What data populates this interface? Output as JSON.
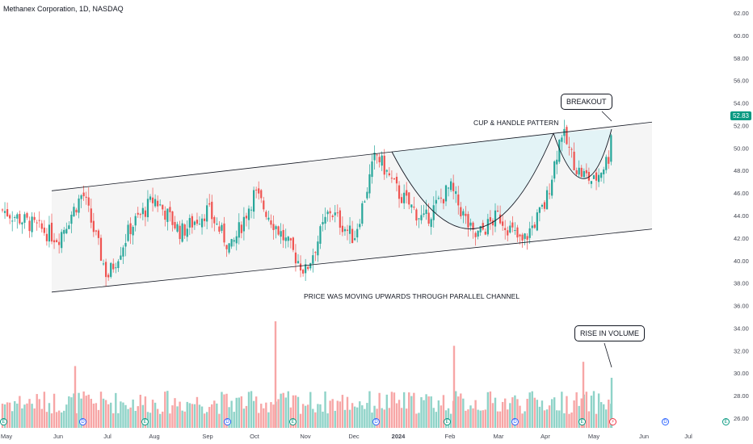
{
  "header": {
    "title": "Methanex Corporation, 1D, NASDAQ"
  },
  "price_tag": "52.83",
  "annotations": {
    "breakout": "BREAKOUT",
    "cup_handle": "CUP & HANDLE PATTERN",
    "channel": "PRICE WAS MOVING UPWARDS THROUGH PARALLEL CHANNEL",
    "volume": "RISE IN VOLUME"
  },
  "events": {
    "earnings_symbol": "E",
    "dividend_symbol": "D",
    "split_symbol": "⚡",
    "earnings_count": 6,
    "dividend_count": 5
  },
  "colors": {
    "up": "#26a69a",
    "down": "#ef5350",
    "vol_up": "#8fd3c8",
    "vol_down": "#f7a6a6",
    "channel_fill": "#f5f5f5",
    "cup_fill": "#e3f3f6",
    "line": "#131722"
  },
  "chart_data": {
    "type": "candlestick",
    "title": "Methanex Corporation, 1D, NASDAQ",
    "last_price": 52.83,
    "y_axis": {
      "ticks": [
        "62.00",
        "60.00",
        "58.00",
        "56.00",
        "54.00",
        "52.00",
        "50.00",
        "48.00",
        "46.00",
        "44.00",
        "42.00",
        "40.00",
        "38.00",
        "36.00",
        "34.00",
        "32.00",
        "30.00",
        "28.00",
        "26.00"
      ],
      "range": [
        26,
        62
      ]
    },
    "x_axis": {
      "ticks": [
        "May",
        "Jun",
        "Jul",
        "Aug",
        "Sep",
        "Oct",
        "Nov",
        "Dec",
        "2024",
        "Feb",
        "Mar",
        "Apr",
        "May",
        "Jun",
        "Jul"
      ]
    },
    "price_path": [
      {
        "date": "May",
        "price": 44.5
      },
      {
        "date": "Jun",
        "price": 42.0
      },
      {
        "date": "Jun",
        "price": 46.0
      },
      {
        "date": "Jul",
        "price": 38.5
      },
      {
        "date": "Jul",
        "price": 43.0
      },
      {
        "date": "Aug",
        "price": 45.5
      },
      {
        "date": "Aug",
        "price": 42.5
      },
      {
        "date": "Sep",
        "price": 44.5
      },
      {
        "date": "Sep",
        "price": 41.0
      },
      {
        "date": "Oct",
        "price": 46.0
      },
      {
        "date": "Oct",
        "price": 42.5
      },
      {
        "date": "Nov",
        "price": 39.0
      },
      {
        "date": "Nov",
        "price": 44.5
      },
      {
        "date": "Dec",
        "price": 42.0
      },
      {
        "date": "Dec",
        "price": 49.5
      },
      {
        "date": "2024",
        "price": 46.0
      },
      {
        "date": "2024",
        "price": 43.5
      },
      {
        "date": "Feb",
        "price": 46.5
      },
      {
        "date": "Feb",
        "price": 42.0
      },
      {
        "date": "Mar",
        "price": 44.0
      },
      {
        "date": "Mar",
        "price": 41.5
      },
      {
        "date": "Apr",
        "price": 45.0
      },
      {
        "date": "Apr",
        "price": 51.5
      },
      {
        "date": "Apr",
        "price": 48.0
      },
      {
        "date": "May",
        "price": 47.0
      },
      {
        "date": "May",
        "price": 49.5
      },
      {
        "date": "May",
        "price": 53.5
      }
    ],
    "channel": {
      "upper": [
        {
          "date": "Jun",
          "price": 46.2
        },
        {
          "date": "May",
          "price": 52.3
        }
      ],
      "lower": [
        {
          "date": "Jun",
          "price": 37.2
        },
        {
          "date": "May",
          "price": 42.8
        }
      ]
    },
    "volume": {
      "scale": "relative",
      "peaks": [
        {
          "date": "Jul",
          "value": 0.58,
          "direction": "down"
        },
        {
          "date": "Nov",
          "value": 1.0,
          "direction": "down"
        },
        {
          "date": "Feb",
          "value": 0.77,
          "direction": "down"
        },
        {
          "date": "May",
          "value": 0.62,
          "direction": "down"
        },
        {
          "date": "May",
          "value": 0.47,
          "direction": "up"
        }
      ]
    }
  }
}
